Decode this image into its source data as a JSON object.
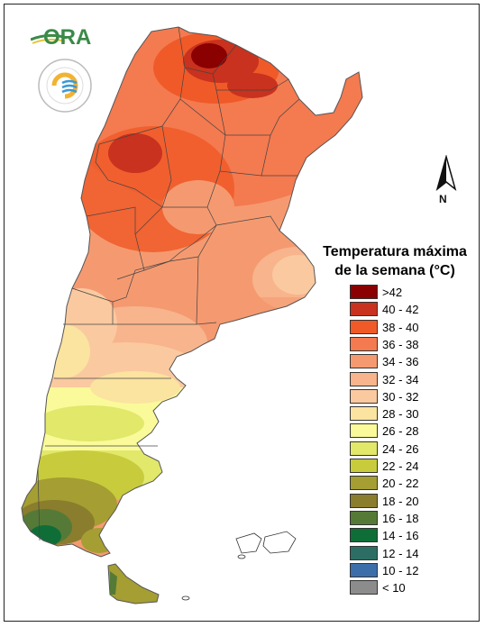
{
  "logo": {
    "text": "ORA"
  },
  "north_arrow": {
    "label": "N"
  },
  "legend": {
    "title_line1": "Temperatura máxima",
    "title_line2": "de la semana (°C)",
    "items": [
      {
        "label": ">42",
        "color": "#8b0000"
      },
      {
        "label": "40 - 42",
        "color": "#c8321e"
      },
      {
        "label": "38 - 40",
        "color": "#f05a28"
      },
      {
        "label": "36 - 38",
        "color": "#f47a50"
      },
      {
        "label": "34 - 36",
        "color": "#f59a70"
      },
      {
        "label": "32 - 34",
        "color": "#f8b48c"
      },
      {
        "label": "30 - 32",
        "color": "#fac9a0"
      },
      {
        "label": "28 - 30",
        "color": "#fbe3a0"
      },
      {
        "label": "26 - 28",
        "color": "#fafa9a"
      },
      {
        "label": "24 - 26",
        "color": "#e1e86a"
      },
      {
        "label": "22 - 24",
        "color": "#c8cc3c"
      },
      {
        "label": "20 - 22",
        "color": "#a59e32"
      },
      {
        "label": "18 - 20",
        "color": "#8a7d2d"
      },
      {
        "label": "16 - 18",
        "color": "#557a37"
      },
      {
        "label": "14 - 16",
        "color": "#0f6e37"
      },
      {
        "label": "12 - 14",
        "color": "#2d6e64"
      },
      {
        "label": "10 - 12",
        "color": "#3c6eaa"
      },
      {
        "label": "< 10",
        "color": "#8c8c8c"
      }
    ]
  }
}
